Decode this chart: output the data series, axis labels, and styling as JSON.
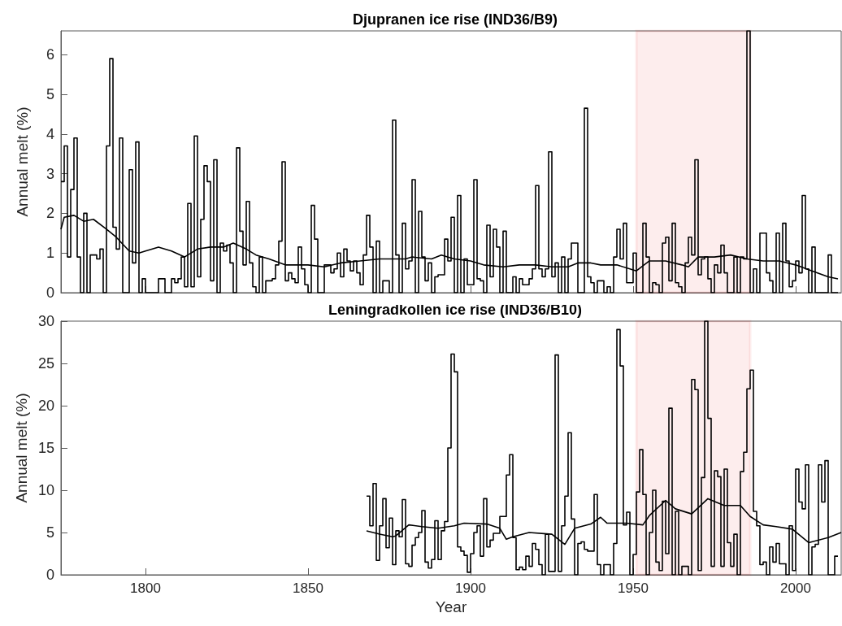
{
  "chart_data": [
    {
      "type": "step",
      "title": "Djupranen ice rise (IND36/B9)",
      "ylabel": "Annual melt (%)",
      "x": [
        1774,
        1775,
        1776,
        1777,
        1778,
        1779,
        1780,
        1781,
        1782,
        1783,
        1784,
        1785,
        1786,
        1787,
        1788,
        1789,
        1790,
        1791,
        1792,
        1793,
        1794,
        1795,
        1796,
        1797,
        1798,
        1799,
        1800,
        1801,
        1802,
        1803,
        1804,
        1805,
        1806,
        1807,
        1808,
        1809,
        1810,
        1811,
        1812,
        1813,
        1814,
        1815,
        1816,
        1817,
        1818,
        1819,
        1820,
        1821,
        1822,
        1823,
        1824,
        1825,
        1826,
        1827,
        1828,
        1829,
        1830,
        1831,
        1832,
        1833,
        1834,
        1835,
        1836,
        1837,
        1838,
        1839,
        1840,
        1841,
        1842,
        1843,
        1844,
        1845,
        1846,
        1847,
        1848,
        1849,
        1850,
        1851,
        1852,
        1853,
        1854,
        1855,
        1856,
        1857,
        1858,
        1859,
        1860,
        1861,
        1862,
        1863,
        1864,
        1865,
        1866,
        1867,
        1868,
        1869,
        1870,
        1871,
        1872,
        1873,
        1874,
        1875,
        1876,
        1877,
        1878,
        1879,
        1880,
        1881,
        1882,
        1883,
        1884,
        1885,
        1886,
        1887,
        1888,
        1889,
        1890,
        1891,
        1892,
        1893,
        1894,
        1895,
        1896,
        1897,
        1898,
        1899,
        1900,
        1901,
        1902,
        1903,
        1904,
        1905,
        1906,
        1907,
        1908,
        1909,
        1910,
        1911,
        1912,
        1913,
        1914,
        1915,
        1916,
        1917,
        1918,
        1919,
        1920,
        1921,
        1922,
        1923,
        1924,
        1925,
        1926,
        1927,
        1928,
        1929,
        1930,
        1931,
        1932,
        1933,
        1934,
        1935,
        1936,
        1937,
        1938,
        1939,
        1940,
        1941,
        1942,
        1943,
        1944,
        1945,
        1946,
        1947,
        1948,
        1949,
        1950,
        1951,
        1952,
        1953,
        1954,
        1955,
        1956,
        1957,
        1958,
        1959,
        1960,
        1961,
        1962,
        1963,
        1964,
        1965,
        1966,
        1967,
        1968,
        1969,
        1970,
        1971,
        1972,
        1973,
        1974,
        1975,
        1976,
        1977,
        1978,
        1979,
        1980,
        1981,
        1982,
        1983,
        1984,
        1985,
        1986,
        1987,
        1988,
        1989,
        1990,
        1991,
        1992,
        1993,
        1994,
        1995,
        1996,
        1997,
        1998,
        1999,
        2000,
        2001,
        2002,
        2003,
        2004,
        2005,
        2006,
        2007,
        2008,
        2009,
        2010,
        2011,
        2012,
        2013
      ],
      "series": [
        {
          "color": "#000000",
          "values": [
            2.8,
            3.7,
            0.9,
            2.6,
            3.9,
            0.9,
            0,
            2.0,
            0,
            0.95,
            0.95,
            0.85,
            1.1,
            0,
            3.7,
            5.9,
            1.65,
            1.1,
            3.9,
            0,
            0,
            3.1,
            0.75,
            3.8,
            0,
            0.35,
            0,
            0,
            0,
            0,
            0.35,
            0.35,
            0,
            0,
            0.35,
            0.25,
            0.35,
            0.9,
            0.15,
            2.25,
            0.15,
            3.95,
            0.4,
            1.85,
            3.2,
            2.8,
            0.3,
            3.35,
            0,
            1.25,
            1.05,
            1.2,
            0.75,
            0,
            3.65,
            1.55,
            0.7,
            2.3,
            0.75,
            0.15,
            0,
            0.9,
            0,
            0.3,
            0.3,
            0.35,
            0.7,
            1.3,
            3.3,
            0.3,
            0.5,
            0.35,
            0.25,
            1.15,
            0.6,
            0.2,
            0,
            2.2,
            1.35,
            0,
            0,
            0.7,
            0.7,
            0.5,
            0.6,
            1.0,
            0.4,
            1.1,
            0.8,
            0.55,
            0.8,
            0.5,
            0.2,
            0.95,
            1.95,
            1.15,
            0,
            1.3,
            0,
            0.3,
            0.3,
            0,
            4.35,
            0.95,
            0,
            1.75,
            0.6,
            0.8,
            2.85,
            0,
            2.05,
            0.9,
            0.3,
            0.75,
            0,
            0.4,
            0.45,
            0.45,
            1.35,
            0.8,
            1.9,
            0,
            2.45,
            0,
            0.85,
            0.2,
            0.2,
            2.85,
            0.35,
            0.3,
            0,
            1.7,
            0.4,
            1.6,
            1.15,
            0,
            1.55,
            0,
            0,
            0.4,
            0,
            0.35,
            0.2,
            0.2,
            0.35,
            0.6,
            2.7,
            0.6,
            0.4,
            0.6,
            3.55,
            0.4,
            0.75,
            0,
            0.9,
            0,
            0.85,
            1.25,
            1.25,
            0,
            0,
            4.65,
            0.4,
            0.25,
            0,
            0.3,
            0.3,
            0,
            0.15,
            0,
            0.9,
            1.6,
            0.85,
            1.75,
            0.25,
            0.25,
            1.0,
            0,
            0,
            1.75,
            0.9,
            0,
            0.25,
            0.2,
            0,
            1.25,
            1.4,
            0.3,
            1.75,
            0.25,
            0.15,
            0,
            0.75,
            1.4,
            0.95,
            3.35,
            0.45,
            0.85,
            0.9,
            0.35,
            0,
            0.7,
            0.5,
            1.2,
            0.5,
            0,
            0,
            0.9,
            0,
            0.9,
            0.85,
            6.6,
            0,
            0.6,
            0,
            1.5,
            1.5,
            0.5,
            0.3,
            0,
            1.5,
            0,
            1.75,
            0.8,
            0.15,
            0.3,
            0.8,
            0.5,
            2.45,
            0.6,
            0,
            1.15,
            0,
            0,
            0,
            0,
            0.95,
            0,
            0,
            0
          ]
        },
        {
          "type": "line",
          "color": "#000000",
          "x": [
            1774,
            1775,
            1778,
            1781,
            1784,
            1788,
            1791,
            1795,
            1798,
            1800,
            1804,
            1808,
            1812,
            1816,
            1820,
            1824,
            1827,
            1831,
            1834,
            1838,
            1843,
            1850,
            1855,
            1860,
            1866,
            1872,
            1880,
            1882,
            1888,
            1891,
            1895,
            1900,
            1904,
            1910,
            1915,
            1920,
            1925,
            1930,
            1933,
            1937,
            1940,
            1945,
            1951,
            1955,
            1960,
            1965,
            1967,
            1970,
            1975,
            1980,
            1985,
            1990,
            1995,
            2000,
            2005,
            2010,
            2013
          ],
          "values": [
            1.6,
            1.9,
            1.95,
            1.8,
            1.85,
            1.6,
            1.4,
            1.05,
            1.0,
            1.05,
            1.15,
            1.05,
            0.9,
            1.1,
            1.15,
            1.15,
            1.25,
            1.1,
            0.95,
            0.85,
            0.7,
            0.7,
            0.65,
            0.75,
            0.8,
            0.85,
            0.85,
            0.9,
            0.85,
            0.95,
            0.85,
            0.8,
            0.7,
            0.65,
            0.7,
            0.7,
            0.65,
            0.65,
            0.75,
            0.75,
            0.7,
            0.7,
            0.55,
            0.8,
            0.8,
            0.7,
            0.65,
            0.9,
            0.9,
            0.95,
            0.85,
            0.8,
            0.8,
            0.7,
            0.55,
            0.4,
            0.35
          ]
        }
      ],
      "xlim": [
        1774,
        2014
      ],
      "xticks": [
        1800,
        1850,
        1900,
        1950,
        2000
      ],
      "ylim": [
        0,
        6.6
      ],
      "yticks": [
        0,
        1,
        2,
        3,
        4,
        5,
        6
      ],
      "tick_labels": "y",
      "bands": [
        {
          "axis": "x",
          "from": 1951,
          "to": 1986,
          "color": "#e8141c"
        }
      ]
    },
    {
      "type": "step",
      "title": "Leningradkollen ice rise (IND36/B10)",
      "xlabel": "Year",
      "ylabel": "Annual melt (%)",
      "x": [
        1868,
        1869,
        1870,
        1871,
        1872,
        1873,
        1874,
        1875,
        1876,
        1877,
        1878,
        1879,
        1880,
        1881,
        1882,
        1883,
        1884,
        1885,
        1886,
        1887,
        1888,
        1889,
        1890,
        1891,
        1892,
        1893,
        1894,
        1895,
        1896,
        1897,
        1898,
        1899,
        1900,
        1901,
        1902,
        1903,
        1904,
        1905,
        1906,
        1907,
        1908,
        1909,
        1910,
        1911,
        1912,
        1913,
        1914,
        1915,
        1916,
        1917,
        1918,
        1919,
        1920,
        1921,
        1922,
        1923,
        1924,
        1925,
        1926,
        1927,
        1928,
        1929,
        1930,
        1931,
        1932,
        1933,
        1934,
        1935,
        1936,
        1937,
        1938,
        1939,
        1940,
        1941,
        1942,
        1943,
        1944,
        1945,
        1946,
        1947,
        1948,
        1949,
        1950,
        1951,
        1952,
        1953,
        1954,
        1955,
        1956,
        1957,
        1958,
        1959,
        1960,
        1961,
        1962,
        1963,
        1964,
        1965,
        1966,
        1967,
        1968,
        1969,
        1970,
        1971,
        1972,
        1973,
        1974,
        1975,
        1976,
        1977,
        1978,
        1979,
        1980,
        1981,
        1982,
        1983,
        1984,
        1985,
        1986,
        1987,
        1988,
        1989,
        1990,
        1991,
        1992,
        1993,
        1994,
        1995,
        1996,
        1997,
        1998,
        1999,
        2000,
        2001,
        2002,
        2003,
        2004,
        2005,
        2006,
        2007,
        2008,
        2009,
        2010,
        2011,
        2012,
        2013
      ],
      "series": [
        {
          "color": "#000000",
          "values": [
            9.3,
            5.8,
            10.8,
            1.7,
            5.8,
            9.0,
            3.2,
            6.7,
            1.2,
            5.2,
            4.5,
            8.9,
            1.3,
            1.0,
            3.5,
            4.4,
            5.0,
            7.6,
            1.5,
            0.8,
            1.8,
            6.4,
            1.8,
            5.2,
            6.3,
            15.0,
            26.1,
            24.0,
            3.3,
            2.8,
            2.3,
            0.3,
            2.5,
            5.0,
            5.8,
            2.2,
            9.0,
            3.3,
            4.1,
            4.9,
            4.9,
            6.9,
            6.9,
            11.8,
            14.2,
            4.4,
            0.6,
            0.9,
            0.6,
            2.2,
            1.0,
            3.7,
            3.0,
            1.2,
            0,
            4.8,
            0.4,
            0.4,
            26.0,
            0.4,
            5.8,
            9.3,
            16.8,
            6.6,
            0,
            3.7,
            3.9,
            3.0,
            2.8,
            2.8,
            9.5,
            1.2,
            0,
            1.2,
            1.2,
            0,
            3.7,
            29.0,
            24.7,
            5.9,
            7.4,
            0,
            2.4,
            9.8,
            14.8,
            9.5,
            0,
            5.0,
            10.0,
            1.5,
            0.5,
            8.7,
            2.5,
            19.7,
            0,
            7.5,
            0,
            1.0,
            1.0,
            0,
            23.1,
            21.9,
            0.5,
            11.5,
            30,
            18.5,
            1.0,
            12.3,
            11.6,
            1.0,
            12.5,
            3.8,
            1.0,
            4.8,
            0,
            12.2,
            14.5,
            22.0,
            24.2,
            7.5,
            5.8,
            1.2,
            1.5,
            0,
            3.3,
            1.5,
            3.7,
            1.3,
            1.3,
            0,
            5.8,
            0.5,
            12.5,
            8.6,
            7.8,
            13.0,
            0,
            3.3,
            3.6,
            13.0,
            8.6,
            13.5,
            0,
            0,
            2.2,
            2.2
          ]
        },
        {
          "type": "line",
          "color": "#000000",
          "x": [
            1868,
            1872,
            1876,
            1877,
            1881,
            1885,
            1890,
            1895,
            1898,
            1905,
            1909,
            1911,
            1913,
            1918,
            1925,
            1929,
            1932,
            1937,
            1940,
            1942,
            1948,
            1953,
            1955,
            1960,
            1963,
            1968,
            1973,
            1978,
            1983,
            1986,
            1990,
            1994,
            1999,
            2004,
            2010,
            2014
          ],
          "values": [
            5.2,
            4.8,
            4.5,
            4.6,
            5.9,
            5.7,
            5.5,
            5.8,
            6.1,
            6.0,
            5.5,
            4.2,
            4.5,
            5.0,
            4.8,
            3.6,
            5.5,
            6.0,
            6.8,
            6.1,
            6.1,
            5.9,
            7.0,
            8.8,
            7.8,
            7.2,
            9.0,
            8.2,
            8.2,
            6.9,
            5.9,
            5.7,
            5.4,
            3.8,
            4.4,
            5.0
          ]
        }
      ],
      "xlim": [
        1774,
        2014
      ],
      "xticks": [
        1800,
        1850,
        1900,
        1950,
        2000
      ],
      "ylim": [
        0,
        30
      ],
      "yticks": [
        0,
        5,
        10,
        15,
        20,
        25,
        30
      ],
      "bands": [
        {
          "axis": "x",
          "from": 1951,
          "to": 1986,
          "color": "#e8141c"
        }
      ]
    }
  ]
}
